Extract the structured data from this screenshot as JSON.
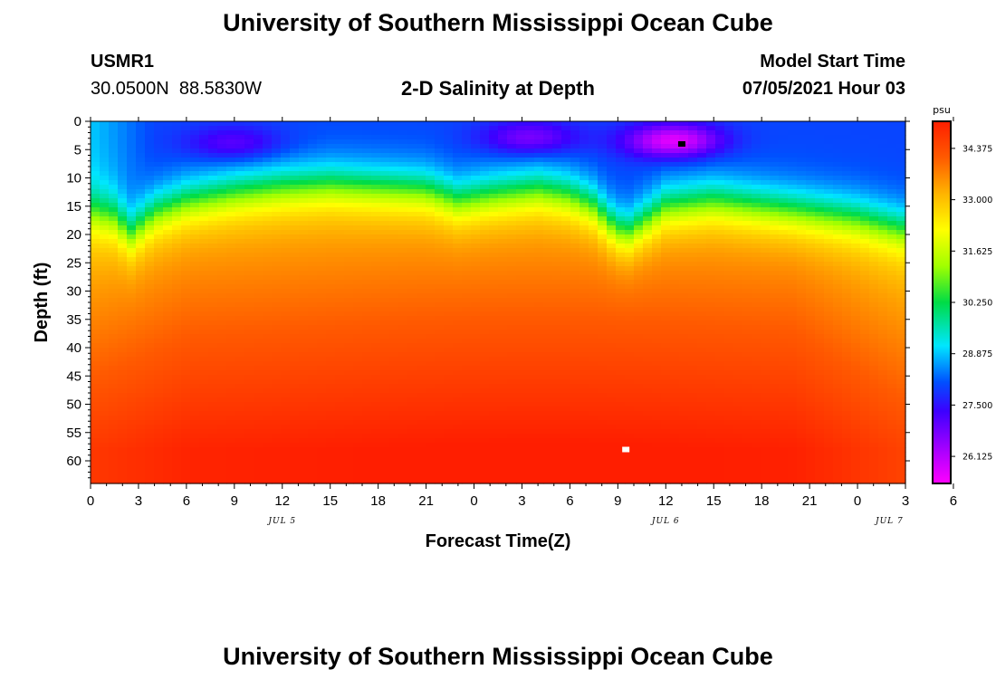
{
  "header": {
    "title_top": "University of Southern Mississippi Ocean Cube",
    "station_id": "USMR1",
    "coords": "30.0500N  88.5830W",
    "plot_title": "2-D Salinity at Depth",
    "model_start_label": "Model Start Time",
    "model_start_value": "07/05/2021 Hour 03",
    "title_bottom": "University of Southern Mississippi Ocean Cube"
  },
  "chart_data": {
    "type": "heatmap",
    "title": "2-D Salinity at Depth",
    "xlabel": "Forecast Time(Z)",
    "ylabel": "Depth (ft)",
    "x_ticks": [
      "0",
      "3",
      "6",
      "9",
      "12",
      "15",
      "18",
      "21",
      "0",
      "3",
      "6",
      "9",
      "12",
      "15",
      "18",
      "21",
      "0",
      "3",
      "6"
    ],
    "x_hours_range": [
      0,
      51
    ],
    "day_labels": [
      {
        "text": "JUL 5",
        "hour": 12
      },
      {
        "text": "JUL 6",
        "hour": 36
      },
      {
        "text": "JUL 7",
        "hour": 50
      }
    ],
    "y_ticks": [
      0,
      5,
      10,
      15,
      20,
      25,
      30,
      35,
      40,
      45,
      50,
      55,
      60
    ],
    "ylim": [
      0,
      64
    ],
    "y_inverted": true,
    "colorbar": {
      "unit": "psu",
      "range": [
        25.4,
        35.1
      ],
      "tick_values": [
        26.125,
        27.5,
        28.875,
        30.25,
        31.625,
        33.0,
        34.375
      ],
      "tick_labels": [
        "26.125",
        "27.500",
        "28.875",
        "30.250",
        "31.625",
        "33.000",
        "34.375"
      ]
    },
    "halocline_depth_ft": [
      {
        "hour": 0,
        "depth": 16
      },
      {
        "hour": 1.5,
        "depth": 17
      },
      {
        "hour": 2.5,
        "depth": 20
      },
      {
        "hour": 4,
        "depth": 16
      },
      {
        "hour": 6,
        "depth": 14
      },
      {
        "hour": 9,
        "depth": 12.5
      },
      {
        "hour": 12,
        "depth": 11.5
      },
      {
        "hour": 15,
        "depth": 11
      },
      {
        "hour": 18,
        "depth": 11.5
      },
      {
        "hour": 21,
        "depth": 12
      },
      {
        "hour": 23,
        "depth": 14
      },
      {
        "hour": 25,
        "depth": 13
      },
      {
        "hour": 28,
        "depth": 12
      },
      {
        "hour": 30,
        "depth": 13
      },
      {
        "hour": 31.5,
        "depth": 15
      },
      {
        "hour": 32.5,
        "depth": 18
      },
      {
        "hour": 33.5,
        "depth": 20
      },
      {
        "hour": 34.5,
        "depth": 18
      },
      {
        "hour": 36,
        "depth": 15
      },
      {
        "hour": 39,
        "depth": 14
      },
      {
        "hour": 42,
        "depth": 15
      },
      {
        "hour": 45,
        "depth": 16
      },
      {
        "hour": 48,
        "depth": 17
      },
      {
        "hour": 51,
        "depth": 19
      }
    ],
    "surface_low_patches": [
      {
        "hour": 36.5,
        "depth": 3.5,
        "min": 25.6
      },
      {
        "hour": 27.5,
        "depth": 3,
        "min": 26.6
      },
      {
        "hour": 9,
        "depth": 4,
        "min": 26.9
      }
    ],
    "markers": [
      {
        "hour": 37,
        "depth": 4,
        "color": "#000000"
      },
      {
        "hour": 33.5,
        "depth": 58,
        "color": "#ffffff"
      }
    ]
  }
}
